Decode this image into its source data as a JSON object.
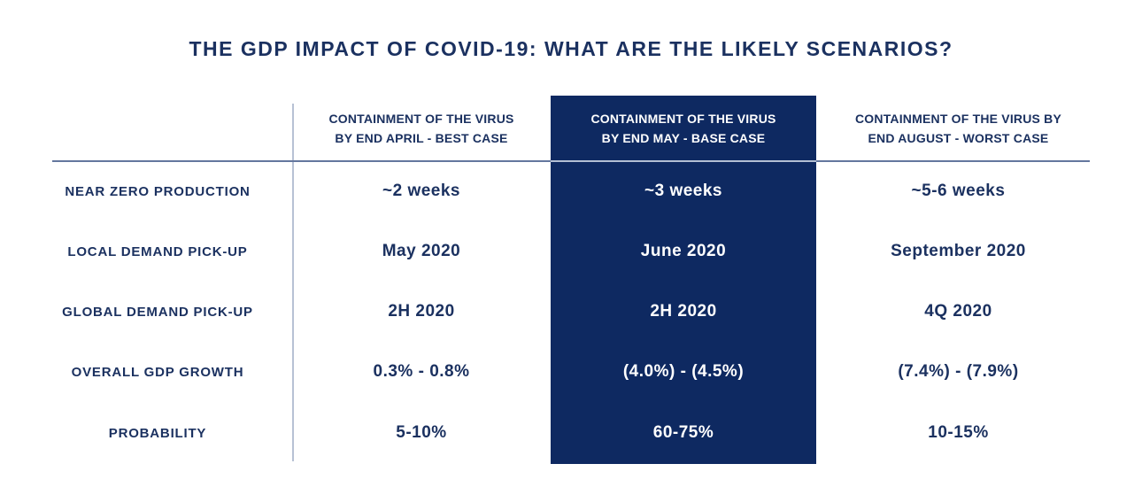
{
  "title": "THE GDP IMPACT OF COVID-19: WHAT ARE THE LIKELY SCENARIOS?",
  "colors": {
    "background": "#ffffff",
    "navy_text": "#1b3160",
    "highlight_column_bg": "#0e2961",
    "highlight_column_text": "#ffffff",
    "header_rule": "#64779e",
    "header_rule_over_dark": "#b3bfd4",
    "vertical_divider": "#b7c1d4"
  },
  "table": {
    "columns": [
      {
        "line1": "CONTAINMENT OF THE VIRUS",
        "line2": "BY END APRIL - BEST CASE",
        "variant": "best-case",
        "highlighted": false
      },
      {
        "line1": "CONTAINMENT OF THE VIRUS",
        "line2": "BY END MAY - BASE CASE",
        "variant": "base-case",
        "highlighted": true
      },
      {
        "line1": "CONTAINMENT OF THE VIRUS BY",
        "line2": "END AUGUST - WORST CASE",
        "variant": "worst-case",
        "highlighted": false
      }
    ],
    "rows": [
      {
        "label": "NEAR ZERO PRODUCTION",
        "best": "~2 weeks",
        "base": "~3 weeks",
        "worst": "~5-6 weeks"
      },
      {
        "label": "LOCAL DEMAND PICK-UP",
        "best": "May 2020",
        "base": "June 2020",
        "worst": "September 2020"
      },
      {
        "label": "GLOBAL DEMAND PICK-UP",
        "best": "2H 2020",
        "base": "2H 2020",
        "worst": "4Q 2020"
      },
      {
        "label": "OVERALL GDP GROWTH",
        "best": "0.3% - 0.8%",
        "base": "(4.0%) - (4.5%)",
        "worst": "(7.4%) - (7.9%)"
      },
      {
        "label": "PROBABILITY",
        "best": "5-10%",
        "base": "60-75%",
        "worst": "10-15%"
      }
    ]
  },
  "chart_data": {
    "type": "table",
    "title": "THE GDP IMPACT OF COVID-19: WHAT ARE THE LIKELY SCENARIOS?",
    "columns": [
      "",
      "CONTAINMENT OF THE VIRUS BY END APRIL - BEST CASE",
      "CONTAINMENT OF THE VIRUS BY END MAY - BASE CASE",
      "CONTAINMENT OF THE VIRUS BY END AUGUST - WORST CASE"
    ],
    "rows": [
      [
        "NEAR ZERO PRODUCTION",
        "~2 weeks",
        "~3 weeks",
        "~5-6 weeks"
      ],
      [
        "LOCAL DEMAND PICK-UP",
        "May 2020",
        "June 2020",
        "September 2020"
      ],
      [
        "GLOBAL DEMAND PICK-UP",
        "2H 2020",
        "2H 2020",
        "4Q 2020"
      ],
      [
        "OVERALL GDP GROWTH",
        "0.3% - 0.8%",
        "(4.0%) - (4.5%)",
        "(7.4%) - (7.9%)"
      ],
      [
        "PROBABILITY",
        "5-10%",
        "60-75%",
        "10-15%"
      ]
    ],
    "highlighted_column": "CONTAINMENT OF THE VIRUS BY END MAY - BASE CASE",
    "layout": {
      "highlight_style": "dark navy filled column with white text",
      "grid": "off",
      "legend": "none"
    }
  }
}
